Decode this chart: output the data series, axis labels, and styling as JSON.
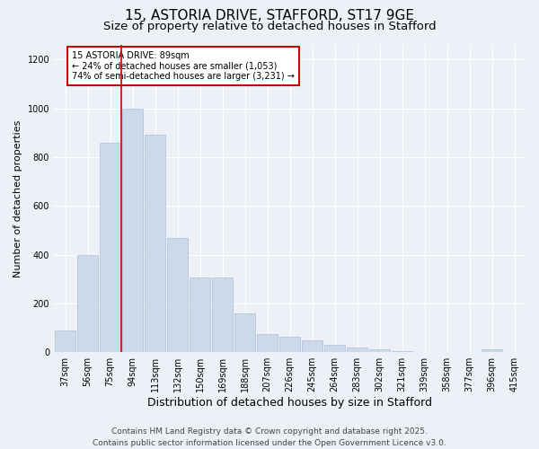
{
  "title1": "15, ASTORIA DRIVE, STAFFORD, ST17 9GE",
  "title2": "Size of property relative to detached houses in Stafford",
  "xlabel": "Distribution of detached houses by size in Stafford",
  "ylabel": "Number of detached properties",
  "categories": [
    "37sqm",
    "56sqm",
    "75sqm",
    "94sqm",
    "113sqm",
    "132sqm",
    "150sqm",
    "169sqm",
    "188sqm",
    "207sqm",
    "226sqm",
    "245sqm",
    "264sqm",
    "283sqm",
    "302sqm",
    "321sqm",
    "339sqm",
    "358sqm",
    "377sqm",
    "396sqm",
    "415sqm"
  ],
  "values": [
    90,
    400,
    860,
    1000,
    890,
    470,
    305,
    305,
    160,
    75,
    65,
    50,
    30,
    20,
    10,
    5,
    2,
    1,
    1,
    10,
    1
  ],
  "bar_color": "#ccd9e8",
  "bar_edge_color": "#adc0d4",
  "vline_x_index": 3,
  "vline_color": "#cc0000",
  "annotation_title": "15 ASTORIA DRIVE: 89sqm",
  "annotation_line1": "← 24% of detached houses are smaller (1,053)",
  "annotation_line2": "74% of semi-detached houses are larger (3,231) →",
  "annotation_box_facecolor": "#ffffff",
  "annotation_box_edgecolor": "#cc0000",
  "ylim": [
    0,
    1260
  ],
  "yticks": [
    0,
    200,
    400,
    600,
    800,
    1000,
    1200
  ],
  "footer1": "Contains HM Land Registry data © Crown copyright and database right 2025.",
  "footer2": "Contains public sector information licensed under the Open Government Licence v3.0.",
  "bg_color": "#edf1f7",
  "grid_color": "#ffffff",
  "title1_fontsize": 11,
  "title2_fontsize": 9.5,
  "xlabel_fontsize": 9,
  "ylabel_fontsize": 8,
  "tick_fontsize": 7,
  "annotation_fontsize": 7,
  "footer_fontsize": 6.5
}
